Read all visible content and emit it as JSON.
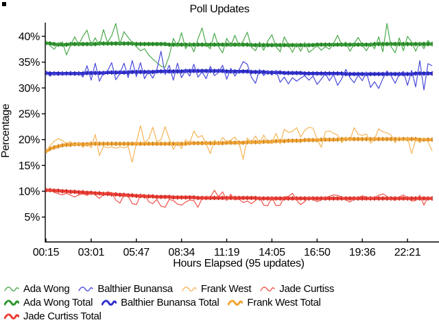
{
  "title": "Poll Updates",
  "axes": {
    "y_label": "Percentage",
    "x_label": "Hours Elapsed (95 updates)"
  },
  "chart_data": {
    "type": "line",
    "title": "Poll Updates",
    "xlabel": "Hours Elapsed (95 updates)",
    "ylabel": "Percentage",
    "n_points": 95,
    "grid": false,
    "legend_position": "bottom-left",
    "y_ticks": [
      {
        "value": 40,
        "label": "40%"
      },
      {
        "value": 35,
        "label": "35%"
      },
      {
        "value": 30,
        "label": "30%"
      },
      {
        "value": 25,
        "label": "25%"
      },
      {
        "value": 20,
        "label": "20%"
      },
      {
        "value": 15,
        "label": "15%"
      },
      {
        "value": 10,
        "label": "10%"
      },
      {
        "value": 5,
        "label": "5%"
      }
    ],
    "x_ticks": [
      {
        "index": 0,
        "label": "00:15"
      },
      {
        "index": 11,
        "label": "03:01"
      },
      {
        "index": 22,
        "label": "05:47"
      },
      {
        "index": 33,
        "label": "08:34"
      },
      {
        "index": 44,
        "label": "11:19"
      },
      {
        "index": 55,
        "label": "14:05"
      },
      {
        "index": 66,
        "label": "16:50"
      },
      {
        "index": 77,
        "label": "19:36"
      },
      {
        "index": 88,
        "label": "22:21"
      }
    ],
    "ylim": [
      0,
      42.8
    ],
    "series": [
      {
        "name": "Ada Wong",
        "color": "#4aa84a",
        "style": "thin",
        "values": [
          39.0,
          38.2,
          37.5,
          38.6,
          38.9,
          36.4,
          38.3,
          39.9,
          38.4,
          40.0,
          41.2,
          38.3,
          39.7,
          38.2,
          41.3,
          38.8,
          40.1,
          42.5,
          38.5,
          40.9,
          39.8,
          38.8,
          38.0,
          37.2,
          37.6,
          36.4,
          35.6,
          34.9,
          34.2,
          34.0,
          36.2,
          39.6,
          38.0,
          40.7,
          37.6,
          38.8,
          37.0,
          39.5,
          41.6,
          38.3,
          37.6,
          40.6,
          38.0,
          36.8,
          39.6,
          38.2,
          40.2,
          38.1,
          39.1,
          40.8,
          37.9,
          37.2,
          38.9,
          37.3,
          39.1,
          40.3,
          38.0,
          37.0,
          39.9,
          38.4,
          36.9,
          38.6,
          37.1,
          38.8,
          36.9,
          37.5,
          38.2,
          37.3,
          38.0,
          37.5,
          38.6,
          40.2,
          38.3,
          38.9,
          37.1,
          38.5,
          39.8,
          38.3,
          37.2,
          38.6,
          37.6,
          39.9,
          37.0,
          42.5,
          38.0,
          36.8,
          39.7,
          37.2,
          40.0,
          38.9,
          37.1,
          38.9,
          37.6,
          39.2,
          38.2
        ]
      },
      {
        "name": "Balthier Bunansa",
        "color": "#4848dc",
        "style": "thin",
        "values": [
          33.0,
          32.3,
          32.9,
          32.4,
          33.1,
          32.5,
          33.2,
          32.4,
          33.0,
          32.1,
          34.3,
          31.5,
          34.8,
          31.3,
          32.9,
          33.3,
          34.9,
          31.6,
          32.8,
          34.8,
          32.0,
          35.3,
          32.2,
          34.9,
          31.8,
          33.2,
          31.9,
          33.6,
          37.1,
          32.6,
          34.4,
          31.5,
          34.8,
          32.0,
          33.4,
          32.3,
          34.6,
          32.1,
          33.1,
          31.8,
          34.2,
          32.4,
          33.0,
          34.4,
          31.7,
          33.8,
          32.3,
          33.5,
          35.1,
          34.6,
          32.1,
          30.9,
          33.6,
          32.4,
          33.2,
          32.5,
          33.4,
          31.1,
          32.1,
          30.8,
          32.0,
          31.3,
          31.9,
          32.4,
          31.5,
          32.3,
          30.7,
          31.7,
          32.8,
          31.4,
          32.6,
          30.5,
          31.8,
          33.6,
          32.0,
          31.0,
          32.5,
          31.4,
          33.1,
          30.1,
          31.2,
          29.9,
          31.8,
          33.3,
          32.4,
          30.9,
          32.7,
          33.2,
          30.5,
          33.4,
          30.2,
          35.3,
          29.6,
          34.7,
          34.3
        ]
      },
      {
        "name": "Frank West",
        "color": "#f6b455",
        "style": "thin",
        "values": [
          17.6,
          18.8,
          19.7,
          20.2,
          19.8,
          19.3,
          19.6,
          19.0,
          19.3,
          18.5,
          19.1,
          18.4,
          21.0,
          16.9,
          18.7,
          18.4,
          18.6,
          18.3,
          18.6,
          18.4,
          18.7,
          15.6,
          19.4,
          22.7,
          19.4,
          20.1,
          22.4,
          19.6,
          20.0,
          22.5,
          20.2,
          18.1,
          19.4,
          18.3,
          20.0,
          19.3,
          21.7,
          20.4,
          20.8,
          19.2,
          17.3,
          19.9,
          19.1,
          20.4,
          19.6,
          19.9,
          20.5,
          19.3,
          16.2,
          20.3,
          19.4,
          20.7,
          19.3,
          20.9,
          19.2,
          19.4,
          21.2,
          19.1,
          22.0,
          21.4,
          21.6,
          22.3,
          20.5,
          21.8,
          22.4,
          22.2,
          20.1,
          18.5,
          21.5,
          21.7,
          21.2,
          20.9,
          19.4,
          20.3,
          19.8,
          22.3,
          21.0,
          20.8,
          21.1,
          19.3,
          20.1,
          22.1,
          21.5,
          21.3,
          20.9,
          19.4,
          20.5,
          19.8,
          20.3,
          17.3,
          20.0,
          19.4,
          20.3,
          19.6,
          17.8
        ]
      },
      {
        "name": "Jade Curtiss",
        "color": "#ef4f45",
        "style": "thin",
        "values": [
          10.3,
          10.2,
          9.8,
          9.5,
          9.3,
          9.6,
          9.2,
          8.9,
          9.3,
          9.5,
          9.2,
          9.6,
          9.3,
          8.6,
          9.4,
          9.9,
          9.7,
          8.3,
          7.7,
          9.3,
          9.1,
          7.6,
          7.4,
          9.2,
          9.4,
          8.0,
          7.6,
          8.4,
          7.1,
          6.9,
          8.4,
          8.2,
          7.5,
          7.3,
          7.9,
          8.3,
          8.2,
          6.9,
          8.6,
          9.0,
          8.8,
          10.2,
          8.9,
          9.9,
          8.2,
          9.4,
          8.3,
          8.5,
          7.8,
          8.1,
          7.6,
          8.2,
          8.9,
          7.3,
          7.2,
          8.8,
          7.2,
          7.3,
          8.9,
          9.0,
          9.6,
          8.3,
          7.4,
          8.0,
          8.9,
          8.4,
          8.0,
          8.3,
          8.8,
          9.0,
          9.3,
          9.2,
          8.9,
          8.3,
          7.9,
          8.5,
          8.8,
          9.1,
          8.9,
          8.6,
          8.8,
          9.2,
          9.5,
          9.0,
          8.5,
          8.2,
          8.9,
          9.3,
          8.7,
          8.1,
          8.2,
          9.2,
          7.3,
          8.9,
          8.5
        ]
      },
      {
        "name": "Ada Wong Total",
        "color": "#2e962e",
        "style": "thick",
        "values": [
          38.7,
          38.6,
          38.5,
          38.4,
          38.4,
          38.4,
          38.5,
          38.5,
          38.5,
          38.5,
          38.5,
          38.5,
          38.5,
          38.6,
          38.6,
          38.6,
          38.6,
          38.6,
          38.6,
          38.6,
          38.6,
          38.6,
          38.5,
          38.5,
          38.5,
          38.5,
          38.5,
          38.5,
          38.5,
          38.5,
          38.4,
          38.4,
          38.4,
          38.4,
          38.4,
          38.4,
          38.4,
          38.4,
          38.4,
          38.4,
          38.4,
          38.4,
          38.4,
          38.4,
          38.4,
          38.4,
          38.4,
          38.4,
          38.4,
          38.4,
          38.3,
          38.3,
          38.3,
          38.3,
          38.3,
          38.3,
          38.3,
          38.3,
          38.3,
          38.3,
          38.3,
          38.3,
          38.3,
          38.3,
          38.3,
          38.3,
          38.4,
          38.4,
          38.4,
          38.4,
          38.4,
          38.4,
          38.4,
          38.4,
          38.4,
          38.4,
          38.4,
          38.4,
          38.4,
          38.4,
          38.5,
          38.5,
          38.5,
          38.5,
          38.5,
          38.5,
          38.5,
          38.5,
          38.5,
          38.5,
          38.5,
          38.5,
          38.5,
          38.5,
          38.5
        ]
      },
      {
        "name": "Balthier Bunansa Total",
        "color": "#3030cf",
        "style": "thick",
        "values": [
          32.9,
          32.8,
          32.8,
          32.8,
          32.8,
          32.8,
          32.8,
          32.8,
          32.8,
          32.8,
          32.9,
          32.9,
          32.9,
          32.9,
          32.9,
          33.0,
          33.0,
          33.0,
          33.0,
          33.0,
          33.0,
          33.1,
          33.1,
          33.1,
          33.1,
          33.1,
          33.1,
          33.2,
          33.2,
          33.2,
          33.2,
          33.2,
          33.2,
          33.2,
          33.3,
          33.3,
          33.3,
          33.3,
          33.3,
          33.3,
          33.3,
          33.3,
          33.3,
          33.3,
          33.2,
          33.2,
          33.2,
          33.2,
          33.2,
          33.2,
          33.1,
          33.1,
          33.1,
          33.1,
          33.0,
          33.0,
          33.0,
          33.0,
          32.9,
          32.9,
          32.9,
          32.9,
          32.9,
          32.8,
          32.8,
          32.8,
          32.8,
          32.8,
          32.8,
          32.8,
          32.8,
          32.8,
          32.8,
          32.7,
          32.7,
          32.7,
          32.7,
          32.7,
          32.7,
          32.7,
          32.7,
          32.7,
          32.7,
          32.7,
          32.7,
          32.7,
          32.7,
          32.7,
          32.7,
          32.7,
          32.8,
          32.8,
          32.8,
          32.8,
          32.8
        ]
      },
      {
        "name": "Frank West Total",
        "color": "#f2a332",
        "style": "thick",
        "values": [
          17.7,
          18.2,
          18.5,
          18.7,
          18.9,
          19.0,
          19.0,
          19.1,
          19.1,
          19.1,
          19.1,
          19.2,
          19.2,
          19.2,
          19.2,
          19.2,
          19.2,
          19.2,
          19.2,
          19.2,
          19.2,
          19.2,
          19.2,
          19.2,
          19.2,
          19.2,
          19.2,
          19.2,
          19.2,
          19.2,
          19.2,
          19.2,
          19.2,
          19.2,
          19.2,
          19.3,
          19.3,
          19.3,
          19.3,
          19.3,
          19.3,
          19.3,
          19.3,
          19.3,
          19.4,
          19.4,
          19.4,
          19.4,
          19.4,
          19.5,
          19.5,
          19.5,
          19.5,
          19.6,
          19.6,
          19.6,
          19.7,
          19.7,
          19.7,
          19.8,
          19.8,
          19.8,
          19.8,
          19.9,
          19.9,
          19.9,
          19.9,
          20.0,
          20.0,
          20.0,
          20.0,
          20.0,
          20.1,
          20.1,
          20.1,
          20.1,
          20.1,
          20.1,
          20.1,
          20.1,
          20.1,
          20.1,
          20.1,
          20.1,
          20.1,
          20.1,
          20.1,
          20.1,
          20.1,
          20.1,
          20.1,
          20.0,
          20.0,
          20.0,
          20.0
        ]
      },
      {
        "name": "Jade Curtiss Total",
        "color": "#ee3b32",
        "style": "thick",
        "values": [
          10.2,
          10.2,
          10.1,
          10.1,
          10.0,
          10.0,
          9.9,
          9.9,
          9.8,
          9.8,
          9.7,
          9.7,
          9.6,
          9.6,
          9.5,
          9.5,
          9.4,
          9.4,
          9.3,
          9.3,
          9.2,
          9.2,
          9.1,
          9.1,
          9.0,
          9.0,
          9.0,
          8.9,
          8.9,
          8.9,
          8.9,
          8.8,
          8.8,
          8.8,
          8.8,
          8.8,
          8.8,
          8.7,
          8.7,
          8.7,
          8.7,
          8.7,
          8.7,
          8.7,
          8.7,
          8.7,
          8.7,
          8.7,
          8.7,
          8.7,
          8.7,
          8.7,
          8.6,
          8.6,
          8.6,
          8.6,
          8.6,
          8.6,
          8.6,
          8.6,
          8.6,
          8.6,
          8.6,
          8.6,
          8.6,
          8.6,
          8.6,
          8.6,
          8.6,
          8.6,
          8.6,
          8.6,
          8.6,
          8.6,
          8.6,
          8.6,
          8.6,
          8.6,
          8.6,
          8.6,
          8.6,
          8.6,
          8.6,
          8.6,
          8.6,
          8.6,
          8.6,
          8.6,
          8.6,
          8.6,
          8.6,
          8.6,
          8.6,
          8.6,
          8.6
        ]
      }
    ],
    "legend_rows": [
      [
        0,
        1,
        2,
        3
      ],
      [
        4,
        5,
        6
      ],
      [
        7
      ]
    ]
  }
}
